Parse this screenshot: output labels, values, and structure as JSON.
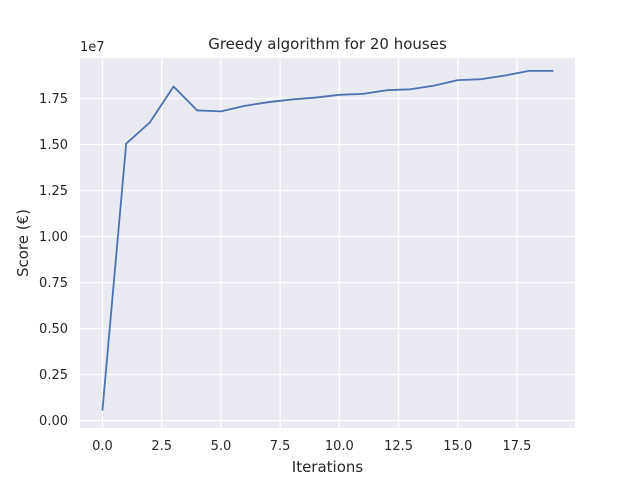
{
  "chart_data": {
    "type": "line",
    "title": "Greedy algorithm for 20 houses",
    "xlabel": "Iterations",
    "ylabel": "Score (€)",
    "y_offset_text": "1e7",
    "xlim": [
      -0.95,
      19.95
    ],
    "ylim": [
      -0.04,
      1.97
    ],
    "grid": true,
    "background_color": "#eaeaf2",
    "grid_color": "#ffffff",
    "line_color": "#4c72b0",
    "x_ticks": [
      0,
      2.5,
      5,
      7.5,
      10,
      12.5,
      15,
      17.5
    ],
    "x_tick_labels": [
      "0.0",
      "2.5",
      "5.0",
      "7.5",
      "10.0",
      "12.5",
      "15.0",
      "17.5"
    ],
    "y_ticks": [
      0,
      0.25,
      0.5,
      0.75,
      1.0,
      1.25,
      1.5,
      1.75
    ],
    "y_tick_labels": [
      "0.00",
      "0.25",
      "0.50",
      "0.75",
      "1.00",
      "1.25",
      "1.50",
      "1.75"
    ],
    "series": [
      {
        "x": [
          0,
          1,
          2,
          3,
          4,
          5,
          6,
          7,
          8,
          9,
          10,
          11,
          12,
          13,
          14,
          15,
          16,
          17,
          18,
          19
        ],
        "values": [
          0.06,
          1.505,
          1.62,
          1.815,
          1.685,
          1.68,
          1.71,
          1.73,
          1.745,
          1.755,
          1.77,
          1.775,
          1.795,
          1.8,
          1.82,
          1.85,
          1.855,
          1.875,
          1.9,
          1.9
        ]
      }
    ]
  }
}
